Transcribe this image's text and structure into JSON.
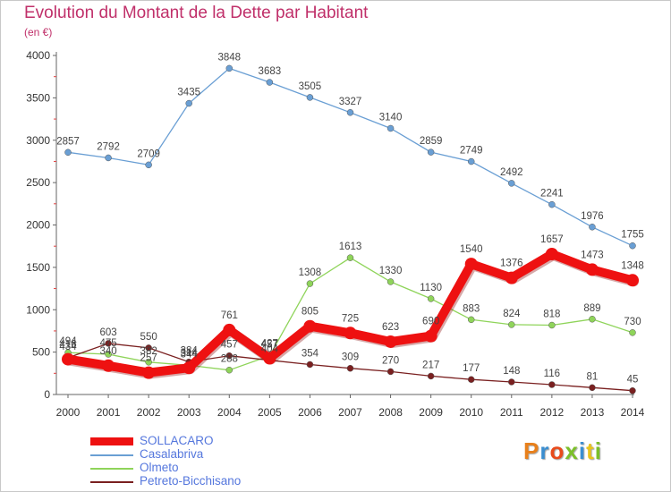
{
  "header": {
    "title": "Evolution du Montant de la Dette par Habitant",
    "unit": "(en €)"
  },
  "logo": {
    "text": "Proxiti",
    "colors": [
      "#e8801c",
      "#3b8ed0",
      "#e84b1c",
      "#7bbf2a",
      "#3b8ed0",
      "#e8c41c",
      "#7bbf2a"
    ]
  },
  "chart_data": {
    "type": "line",
    "title": "Evolution du Montant de la Dette par Habitant",
    "subtitle": "(en €)",
    "xlabel": "",
    "ylabel": "",
    "x": [
      "2000",
      "2001",
      "2002",
      "2003",
      "2004",
      "2005",
      "2006",
      "2007",
      "2008",
      "2009",
      "2010",
      "2011",
      "2012",
      "2013",
      "2014"
    ],
    "ylim": [
      0,
      4000
    ],
    "yticks": [
      0,
      500,
      1000,
      1500,
      2000,
      2500,
      3000,
      3500,
      4000
    ],
    "grid": false,
    "legend": "bottom-left",
    "series": [
      {
        "name": "Casalabriva",
        "color": "#6a9fd4",
        "values": [
          2857,
          2792,
          2709,
          3435,
          3848,
          3683,
          3505,
          3327,
          3140,
          2859,
          2749,
          2492,
          2241,
          1976,
          1755
        ]
      },
      {
        "name": "Olmeto",
        "color": "#8fd45a",
        "values": [
          494,
          475,
          382,
          344,
          288,
          457,
          1308,
          1613,
          1330,
          1130,
          883,
          824,
          818,
          889,
          730
        ]
      },
      {
        "name": "Petreto-Bicchisano",
        "color": "#7a2020",
        "values": [
          434,
          603,
          550,
          384,
          457,
          404,
          354,
          309,
          270,
          217,
          177,
          148,
          116,
          81,
          45
        ]
      },
      {
        "name": "SOLLACARO",
        "color": "#ee1111",
        "values": [
          416,
          340,
          257,
          314,
          761,
          427,
          805,
          725,
          623,
          690,
          1540,
          1376,
          1657,
          1473,
          1348
        ]
      }
    ],
    "legend_order": [
      "SOLLACARO",
      "Casalabriva",
      "Olmeto",
      "Petreto-Bicchisano"
    ]
  }
}
